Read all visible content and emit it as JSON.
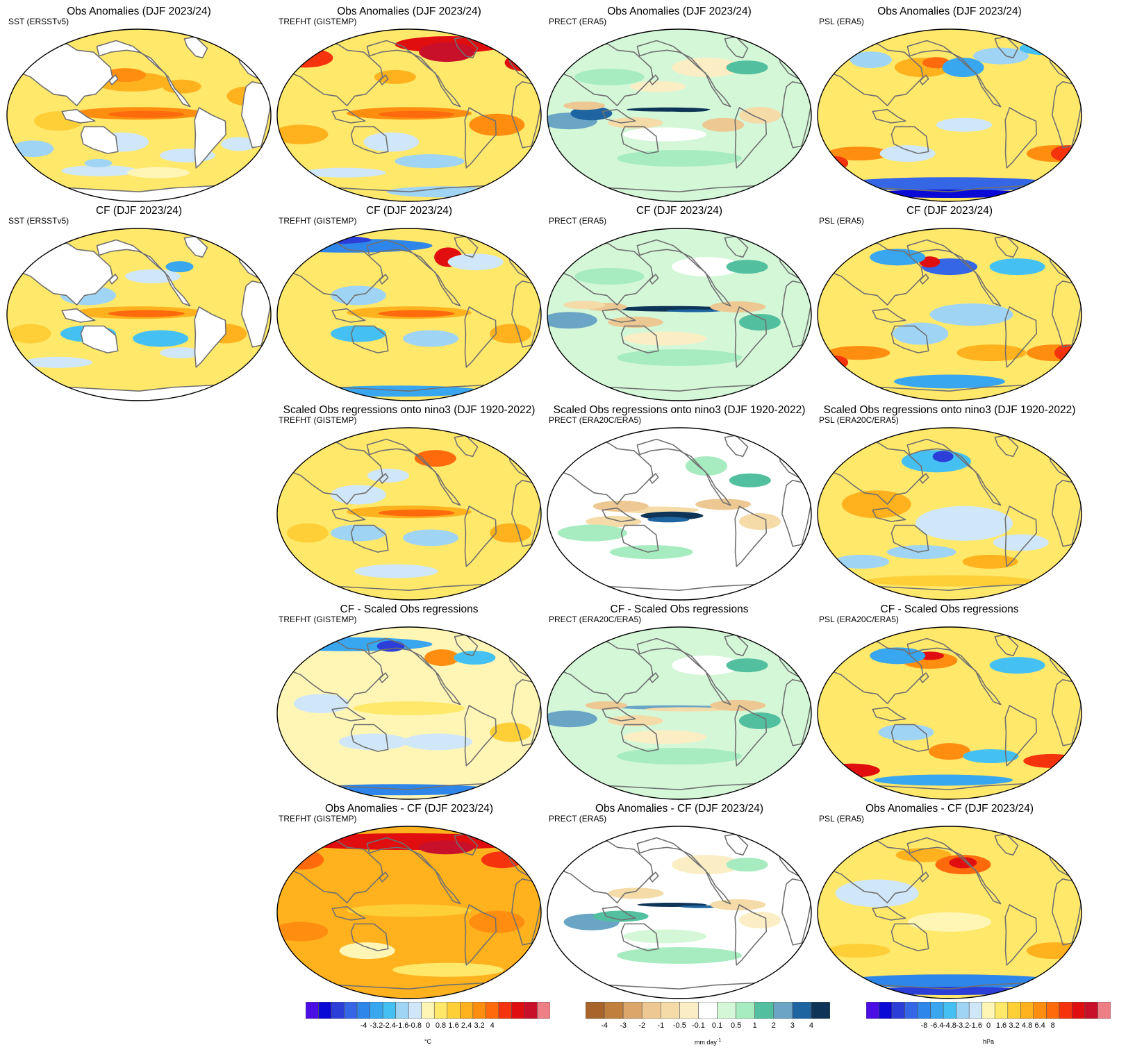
{
  "panels": [
    {
      "id": "p00",
      "title": "Obs Anomalies (DJF 2023/24)",
      "subtitle": "SST (ERSSTv5)",
      "variable": "SST",
      "pattern": "sst_obs"
    },
    {
      "id": "p01",
      "title": "Obs Anomalies (DJF 2023/24)",
      "subtitle": "TREFHT (GISTEMP)",
      "variable": "TREFHT",
      "pattern": "t_obs"
    },
    {
      "id": "p02",
      "title": "Obs Anomalies (DJF 2023/24)",
      "subtitle": "PRECT (ERA5)",
      "variable": "PRECT",
      "pattern": "p_obs"
    },
    {
      "id": "p03",
      "title": "Obs Anomalies (DJF 2023/24)",
      "subtitle": "PSL (ERA5)",
      "variable": "PSL",
      "pattern": "psl_obs"
    },
    {
      "id": "p10",
      "title": "CF (DJF 2023/24)",
      "subtitle": "SST (ERSSTv5)",
      "variable": "SST",
      "pattern": "sst_cf"
    },
    {
      "id": "p11",
      "title": "CF (DJF 2023/24)",
      "subtitle": "TREFHT (GISTEMP)",
      "variable": "TREFHT",
      "pattern": "t_cf"
    },
    {
      "id": "p12",
      "title": "CF (DJF 2023/24)",
      "subtitle": "PRECT (ERA5)",
      "variable": "PRECT",
      "pattern": "p_cf"
    },
    {
      "id": "p13",
      "title": "CF (DJF 2023/24)",
      "subtitle": "PSL (ERA5)",
      "variable": "PSL",
      "pattern": "psl_cf"
    },
    {
      "id": "p21",
      "title": "Scaled Obs regressions onto nino3 (DJF 1920-2022)",
      "subtitle": "TREFHT (GISTEMP)",
      "variable": "TREFHT",
      "pattern": "t_reg"
    },
    {
      "id": "p22",
      "title": "Scaled Obs regressions onto nino3 (DJF 1920-2022)",
      "subtitle": "PRECT (ERA20C/ERA5)",
      "variable": "PRECT",
      "pattern": "p_reg"
    },
    {
      "id": "p23",
      "title": "Scaled Obs regressions onto nino3 (DJF 1920-2022)",
      "subtitle": "PSL (ERA20C/ERA5)",
      "variable": "PSL",
      "pattern": "psl_reg"
    },
    {
      "id": "p31",
      "title": "CF - Scaled Obs regressions",
      "subtitle": "TREFHT (GISTEMP)",
      "variable": "TREFHT",
      "pattern": "t_diff"
    },
    {
      "id": "p32",
      "title": "CF - Scaled Obs regressions",
      "subtitle": "PRECT (ERA20C/ERA5)",
      "variable": "PRECT",
      "pattern": "p_diff"
    },
    {
      "id": "p33",
      "title": "CF - Scaled Obs regressions",
      "subtitle": "PSL (ERA20C/ERA5)",
      "variable": "PSL",
      "pattern": "psl_diff"
    },
    {
      "id": "p41",
      "title": "Obs Anomalies - CF (DJF 2023/24)",
      "subtitle": "TREFHT (GISTEMP)",
      "variable": "TREFHT",
      "pattern": "t_res"
    },
    {
      "id": "p42",
      "title": "Obs Anomalies - CF (DJF 2023/24)",
      "subtitle": "PRECT (ERA5)",
      "variable": "PRECT",
      "pattern": "p_res"
    },
    {
      "id": "p43",
      "title": "Obs Anomalies - CF (DJF 2023/24)",
      "subtitle": "PSL (ERA5)",
      "variable": "PSL",
      "pattern": "psl_res"
    }
  ],
  "colorbars": {
    "temperature": {
      "unit": "°C",
      "colors": [
        "#4b0fe6",
        "#0a0ad6",
        "#2b3fd8",
        "#3566e6",
        "#2f86ea",
        "#39a6f0",
        "#44c0f3",
        "#9fd4f5",
        "#cfe7f8",
        "#fff6b6",
        "#ffe86a",
        "#ffcf38",
        "#ffb11e",
        "#ff8e10",
        "#ff6a0d",
        "#f5330d",
        "#e00e0e",
        "#c8102a",
        "#ef7f86"
      ],
      "ticks": [
        "-4",
        "-3.2",
        "-2.4",
        "-1.6",
        "-0.8",
        "0",
        "0.8",
        "1.6",
        "2.4",
        "3.2",
        "4"
      ]
    },
    "precipitation": {
      "unit": "mm day",
      "unit_sup": "-1",
      "colors": [
        "#a8642a",
        "#c17f3e",
        "#dba66a",
        "#edc892",
        "#f5dba8",
        "#fbeec4",
        "#ffffff",
        "#d4f7d8",
        "#a6ecc0",
        "#52c09e",
        "#6aa5c6",
        "#1d64a0",
        "#0e3557"
      ],
      "ticks": [
        "-4",
        "-3",
        "-2",
        "-1",
        "-0.5",
        "-0.1",
        "0.1",
        "0.5",
        "1",
        "2",
        "3",
        "4"
      ]
    },
    "pressure": {
      "unit": "hPa",
      "colors": [
        "#4b0fe6",
        "#0a0ad6",
        "#2b3fd8",
        "#3566e6",
        "#2f86ea",
        "#39a6f0",
        "#44c0f3",
        "#9fd4f5",
        "#cfe7f8",
        "#fff6b6",
        "#ffe86a",
        "#ffcf38",
        "#ffb11e",
        "#ff8e10",
        "#ff6a0d",
        "#f5330d",
        "#e00e0e",
        "#c8102a",
        "#ef7f86"
      ],
      "ticks": [
        "-8",
        "-6.4",
        "-4.8",
        "-3.2",
        "-1.6",
        "0",
        "1.6",
        "3.2",
        "4.8",
        "6.4",
        "8"
      ]
    }
  }
}
